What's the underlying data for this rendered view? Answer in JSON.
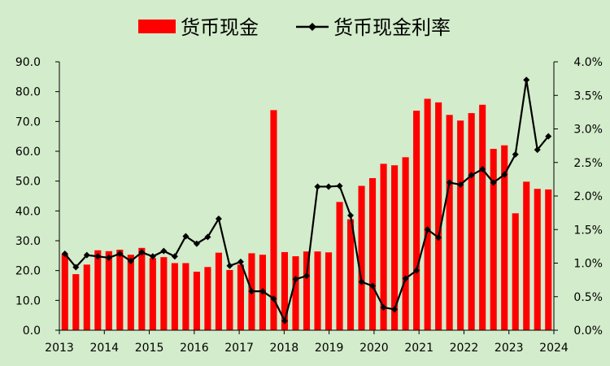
{
  "chart_data": {
    "type": "bar+line",
    "legend": {
      "position": "top",
      "entries": [
        {
          "name": "货币现金",
          "style": "bar",
          "color": "#ff0000"
        },
        {
          "name": "货币现金利率",
          "style": "line-diamond",
          "color": "#000000"
        }
      ]
    },
    "x_tick_labels": [
      "2013",
      "2014",
      "2015",
      "2016",
      "2017",
      "2018",
      "2019",
      "2020",
      "2021",
      "2022",
      "2023",
      "2024"
    ],
    "y_left": {
      "lim": [
        0,
        90
      ],
      "ticks": [
        "0.0",
        "10.0",
        "20.0",
        "30.0",
        "40.0",
        "50.0",
        "60.0",
        "70.0",
        "80.0",
        "90.0"
      ]
    },
    "y_right": {
      "lim": [
        0,
        4.0
      ],
      "ticks": [
        "0.0%",
        "0.5%",
        "1.0%",
        "1.5%",
        "2.0%",
        "2.5%",
        "3.0%",
        "3.5%",
        "4.0%"
      ]
    },
    "grid": false,
    "series": [
      {
        "name": "货币现金",
        "axis": "left",
        "values": [
          25.5,
          18.8,
          22.0,
          26.8,
          26.5,
          27.0,
          25.3,
          27.6,
          24.2,
          24.5,
          22.5,
          22.5,
          19.6,
          21.2,
          26.0,
          20.2,
          22.0,
          25.8,
          25.3,
          73.8,
          26.2,
          24.8,
          26.4,
          26.4,
          26.1,
          43.0,
          37.2,
          48.4,
          51.0,
          55.8,
          55.3,
          58.0,
          73.6,
          77.6,
          76.4,
          72.2,
          70.3,
          72.8,
          75.6,
          60.8,
          62.0,
          39.2,
          49.8,
          47.4,
          47.2
        ]
      },
      {
        "name": "货币现金利率",
        "axis": "right",
        "values": [
          1.14,
          0.94,
          1.12,
          1.1,
          1.08,
          1.14,
          1.03,
          1.16,
          1.1,
          1.18,
          1.1,
          1.4,
          1.29,
          1.39,
          1.66,
          0.96,
          1.02,
          0.58,
          0.58,
          0.47,
          0.14,
          0.76,
          0.81,
          2.14,
          2.14,
          2.15,
          1.71,
          0.72,
          0.66,
          0.34,
          0.31,
          0.77,
          0.89,
          1.5,
          1.38,
          2.2,
          2.17,
          2.31,
          2.4,
          2.2,
          2.32,
          2.62,
          3.73,
          2.69,
          2.89
        ]
      }
    ]
  }
}
